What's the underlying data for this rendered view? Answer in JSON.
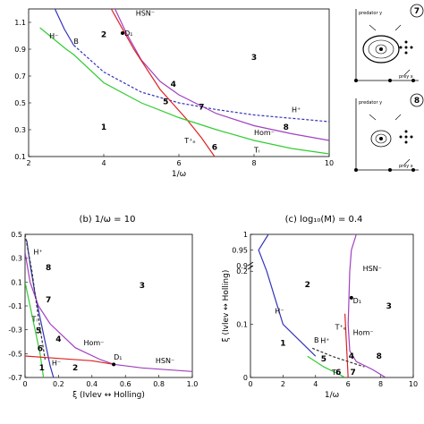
{
  "chart_data": [
    {
      "panel": "a",
      "type": "line",
      "title": "",
      "xlabel": "1/ω",
      "ylabel": "",
      "xlim": [
        2,
        10
      ],
      "ylim": [
        0.1,
        1.2
      ],
      "xticks": [
        "2",
        "4",
        "6",
        "8",
        "10"
      ],
      "yticks": [
        "0.1",
        "0.3",
        "0.5",
        "0.7",
        "0.9",
        "1.1"
      ],
      "series": [
        {
          "name": "H⁻",
          "color": "#3333bb",
          "dash": false,
          "points": [
            [
              2.7,
              1.2
            ],
            [
              2.95,
              1.05
            ],
            [
              3.2,
              0.93
            ]
          ]
        },
        {
          "name": "H⁺",
          "color": "#3333bb",
          "dash": true,
          "points": [
            [
              3.2,
              0.93
            ],
            [
              4,
              0.73
            ],
            [
              5,
              0.58
            ],
            [
              6,
              0.5
            ],
            [
              7,
              0.45
            ],
            [
              8,
              0.41
            ],
            [
              10,
              0.36
            ]
          ]
        },
        {
          "name": "HSN⁻",
          "color": "#a040c0",
          "dash": false,
          "points": [
            [
              4.3,
              1.2
            ],
            [
              4.6,
              1.02
            ],
            [
              5,
              0.82
            ],
            [
              5.5,
              0.66
            ],
            [
              6,
              0.56
            ],
            [
              7,
              0.42
            ],
            [
              8,
              0.33
            ],
            [
              9,
              0.27
            ],
            [
              10,
              0.22
            ]
          ]
        },
        {
          "name": "T⁺ₑ",
          "color": "#dd2222",
          "dash": false,
          "points": [
            [
              4.2,
              1.2
            ],
            [
              4.8,
              0.9
            ],
            [
              5.5,
              0.6
            ],
            [
              6.2,
              0.38
            ],
            [
              6.6,
              0.24
            ],
            [
              6.95,
              0.1
            ]
          ]
        },
        {
          "name": "Tᵢ",
          "color": "#33cc33",
          "dash": false,
          "points": [
            [
              2.3,
              1.06
            ],
            [
              3,
              0.9
            ],
            [
              3.2,
              0.86
            ],
            [
              4,
              0.65
            ],
            [
              5,
              0.5
            ],
            [
              6,
              0.39
            ],
            [
              7,
              0.3
            ],
            [
              8,
              0.22
            ],
            [
              9,
              0.16
            ],
            [
              10,
              0.12
            ]
          ]
        }
      ],
      "labels": [
        {
          "text": "H⁻",
          "x": 2.55,
          "y": 0.98,
          "color": "#3333bb"
        },
        {
          "text": "B",
          "x": 3.2,
          "y": 0.94,
          "color": "#66cccc"
        },
        {
          "text": "HSN⁻",
          "x": 4.85,
          "y": 1.15,
          "color": "#a040c0"
        },
        {
          "text": "D₁",
          "x": 4.55,
          "y": 1.0,
          "color": "#000000"
        },
        {
          "text": "H⁺",
          "x": 9.0,
          "y": 0.43,
          "color": "#3333bb"
        },
        {
          "text": "Hom⁻",
          "x": 8.0,
          "y": 0.26,
          "color": "#a040c0"
        },
        {
          "text": "T⁺ₑ",
          "x": 6.15,
          "y": 0.2,
          "color": "#dd2222"
        },
        {
          "text": "Tᵢ",
          "x": 8.0,
          "y": 0.13,
          "color": "#33cc33"
        }
      ],
      "regions": [
        {
          "text": "1",
          "x": 4.0,
          "y": 0.3
        },
        {
          "text": "2",
          "x": 4.0,
          "y": 0.99
        },
        {
          "text": "3",
          "x": 8.0,
          "y": 0.82
        },
        {
          "text": "4",
          "x": 5.85,
          "y": 0.62
        },
        {
          "text": "5",
          "x": 5.65,
          "y": 0.49
        },
        {
          "text": "6",
          "x": 6.95,
          "y": 0.15
        },
        {
          "text": "7",
          "x": 6.6,
          "y": 0.45
        },
        {
          "text": "8",
          "x": 8.85,
          "y": 0.3
        }
      ],
      "points": [
        {
          "x": 4.5,
          "y": 1.02,
          "name": "D₁"
        }
      ]
    },
    {
      "panel": "b",
      "type": "line",
      "title": "(b) 1/ω = 10",
      "xlabel": "ξ (Ivlev ↔ Holling)",
      "ylabel": "",
      "xlim": [
        0,
        1.0
      ],
      "ylim": [
        -0.7,
        0.5
      ],
      "xticks": [
        "0",
        "0.2",
        "0.4",
        "0.6",
        "0.8",
        "1.0"
      ],
      "yticks": [
        "-0.7",
        "-0.5",
        "-0.3",
        "-0.1",
        "0.1",
        "0.3",
        "0.5"
      ],
      "series": [
        {
          "name": "H⁻",
          "color": "#3333bb",
          "dash": false,
          "points": [
            [
              0.01,
              0.45
            ],
            [
              0.03,
              0.25
            ],
            [
              0.06,
              0.0
            ],
            [
              0.09,
              -0.2
            ],
            [
              0.12,
              -0.4
            ],
            [
              0.15,
              -0.6
            ],
            [
              0.17,
              -0.7
            ]
          ]
        },
        {
          "name": "HSN⁻",
          "color": "#a040c0",
          "dash": false,
          "points": [
            [
              0.0,
              0.35
            ],
            [
              0.03,
              0.1
            ],
            [
              0.08,
              -0.1
            ],
            [
              0.15,
              -0.25
            ],
            [
              0.3,
              -0.45
            ],
            [
              0.45,
              -0.55
            ],
            [
              0.53,
              -0.59
            ],
            [
              0.7,
              -0.62
            ],
            [
              1.0,
              -0.65
            ]
          ]
        },
        {
          "name": "Tᵢ",
          "color": "#33cc33",
          "dash": false,
          "points": [
            [
              0.0,
              0.1
            ],
            [
              0.03,
              -0.1
            ],
            [
              0.06,
              -0.3
            ],
            [
              0.09,
              -0.5
            ],
            [
              0.11,
              -0.7
            ]
          ]
        },
        {
          "name": "T⁺ₑ",
          "color": "#dd2222",
          "dash": false,
          "points": [
            [
              0.0,
              -0.52
            ],
            [
              0.2,
              -0.54
            ],
            [
              0.4,
              -0.56
            ],
            [
              0.53,
              -0.59
            ]
          ]
        },
        {
          "name": "dashed",
          "color": "#333333",
          "dash": true,
          "points": [
            [
              0.0,
              0.5
            ],
            [
              0.04,
              0.2
            ],
            [
              0.08,
              -0.2
            ],
            [
              0.12,
              -0.55
            ]
          ]
        }
      ],
      "labels": [
        {
          "text": "H⁺",
          "x": 0.05,
          "y": 0.33,
          "color": "#3333bb"
        },
        {
          "text": "Tᵢ",
          "x": 0.04,
          "y": -0.23,
          "color": "#33cc33"
        },
        {
          "text": "Hom⁻",
          "x": 0.35,
          "y": -0.43,
          "color": "#a040c0"
        },
        {
          "text": "H⁻",
          "x": 0.16,
          "y": -0.6,
          "color": "#3333bb"
        },
        {
          "text": "D₁",
          "x": 0.53,
          "y": -0.55,
          "color": "#000000"
        },
        {
          "text": "HSN⁻",
          "x": 0.78,
          "y": -0.58,
          "color": "#a040c0"
        }
      ],
      "regions": [
        {
          "text": "1",
          "x": 0.1,
          "y": -0.64
        },
        {
          "text": "2",
          "x": 0.3,
          "y": -0.64
        },
        {
          "text": "3",
          "x": 0.7,
          "y": 0.05
        },
        {
          "text": "4",
          "x": 0.2,
          "y": -0.4
        },
        {
          "text": "5",
          "x": 0.08,
          "y": -0.33
        },
        {
          "text": "6",
          "x": 0.09,
          "y": -0.48
        },
        {
          "text": "7",
          "x": 0.14,
          "y": -0.07
        },
        {
          "text": "8",
          "x": 0.14,
          "y": 0.2
        }
      ],
      "points": [
        {
          "x": 0.53,
          "y": -0.59,
          "name": "D₁"
        }
      ]
    },
    {
      "panel": "c",
      "type": "line",
      "title": "(c) log₁₀(M) = 0.4",
      "xlabel": "1/ω",
      "ylabel": "ξ (Ivlev ↔ Holling)",
      "xlim": [
        0,
        10
      ],
      "ylim": [
        0,
        1
      ],
      "xticks": [
        "0",
        "2",
        "4",
        "6",
        "8",
        "10"
      ],
      "yticks": [
        "0",
        "0.1",
        "0.2",
        "0.9",
        "0.95",
        "1"
      ],
      "series": [
        {
          "name": "H⁻",
          "color": "#3333bb",
          "dash": false,
          "points": [
            [
              1.1,
              1.0
            ],
            [
              0.5,
              0.95
            ],
            [
              1,
              0.2
            ],
            [
              1.5,
              0.15
            ],
            [
              2,
              0.1
            ],
            [
              3,
              0.07
            ],
            [
              4,
              0.04
            ]
          ]
        },
        {
          "name": "HSN⁻",
          "color": "#a040c0",
          "dash": false,
          "points": [
            [
              6.5,
              1.0
            ],
            [
              6.2,
              0.95
            ],
            [
              6.1,
              0.2
            ],
            [
              6.0,
              0.1
            ],
            [
              6.1,
              0.05
            ],
            [
              6.5,
              0.03
            ],
            [
              7.5,
              0.015
            ],
            [
              8.3,
              0.0
            ]
          ]
        },
        {
          "name": "Tᵢ",
          "color": "#33cc33",
          "dash": false,
          "points": [
            [
              3.5,
              0.04
            ],
            [
              4.5,
              0.02
            ],
            [
              5.5,
              0.005
            ],
            [
              5.8,
              0.0
            ]
          ]
        },
        {
          "name": "T⁺ₑ",
          "color": "#dd2222",
          "dash": false,
          "points": [
            [
              5.8,
              0.12
            ],
            [
              5.9,
              0.06
            ],
            [
              6.0,
              0.0
            ]
          ]
        },
        {
          "name": "H⁺",
          "color": "#333333",
          "dash": true,
          "points": [
            [
              3.8,
              0.055
            ],
            [
              5,
              0.04
            ],
            [
              6,
              0.03
            ],
            [
              7,
              0.02
            ]
          ]
        }
      ],
      "labels": [
        {
          "text": "H⁻",
          "x": 1.5,
          "y": 0.12,
          "color": "#3333bb"
        },
        {
          "text": "HSN⁻",
          "x": 6.9,
          "y": 0.2,
          "color": "#a040c0"
        },
        {
          "text": "D₁",
          "x": 6.3,
          "y": 0.14,
          "color": "#000000"
        },
        {
          "text": "T⁺ₑ",
          "x": 5.2,
          "y": 0.09,
          "color": "#dd2222"
        },
        {
          "text": "Hom⁻",
          "x": 6.3,
          "y": 0.08,
          "color": "#a040c0"
        },
        {
          "text": "H⁺",
          "x": 4.3,
          "y": 0.065,
          "color": "#3333bb"
        },
        {
          "text": "Tᵢ",
          "x": 5.0,
          "y": 0.005,
          "color": "#33cc33"
        },
        {
          "text": "B",
          "x": 3.9,
          "y": 0.066,
          "color": "#66cccc"
        }
      ],
      "regions": [
        {
          "text": "1",
          "x": 2.0,
          "y": 0.06
        },
        {
          "text": "2",
          "x": 3.5,
          "y": 0.17
        },
        {
          "text": "3",
          "x": 8.5,
          "y": 0.13
        },
        {
          "text": "4",
          "x": 6.2,
          "y": 0.035
        },
        {
          "text": "5",
          "x": 4.5,
          "y": 0.03
        },
        {
          "text": "6",
          "x": 5.4,
          "y": 0.005
        },
        {
          "text": "7",
          "x": 6.3,
          "y": 0.005
        },
        {
          "text": "8",
          "x": 7.9,
          "y": 0.035
        }
      ],
      "points": [
        {
          "x": 6.2,
          "y": 0.15,
          "name": "D₁"
        }
      ]
    }
  ],
  "insets": [
    {
      "id": "7",
      "label": "7",
      "ylabel": "predator y",
      "xlabel": "prey x"
    },
    {
      "id": "8",
      "label": "8",
      "ylabel": "predator y",
      "xlabel": "prey x"
    }
  ]
}
